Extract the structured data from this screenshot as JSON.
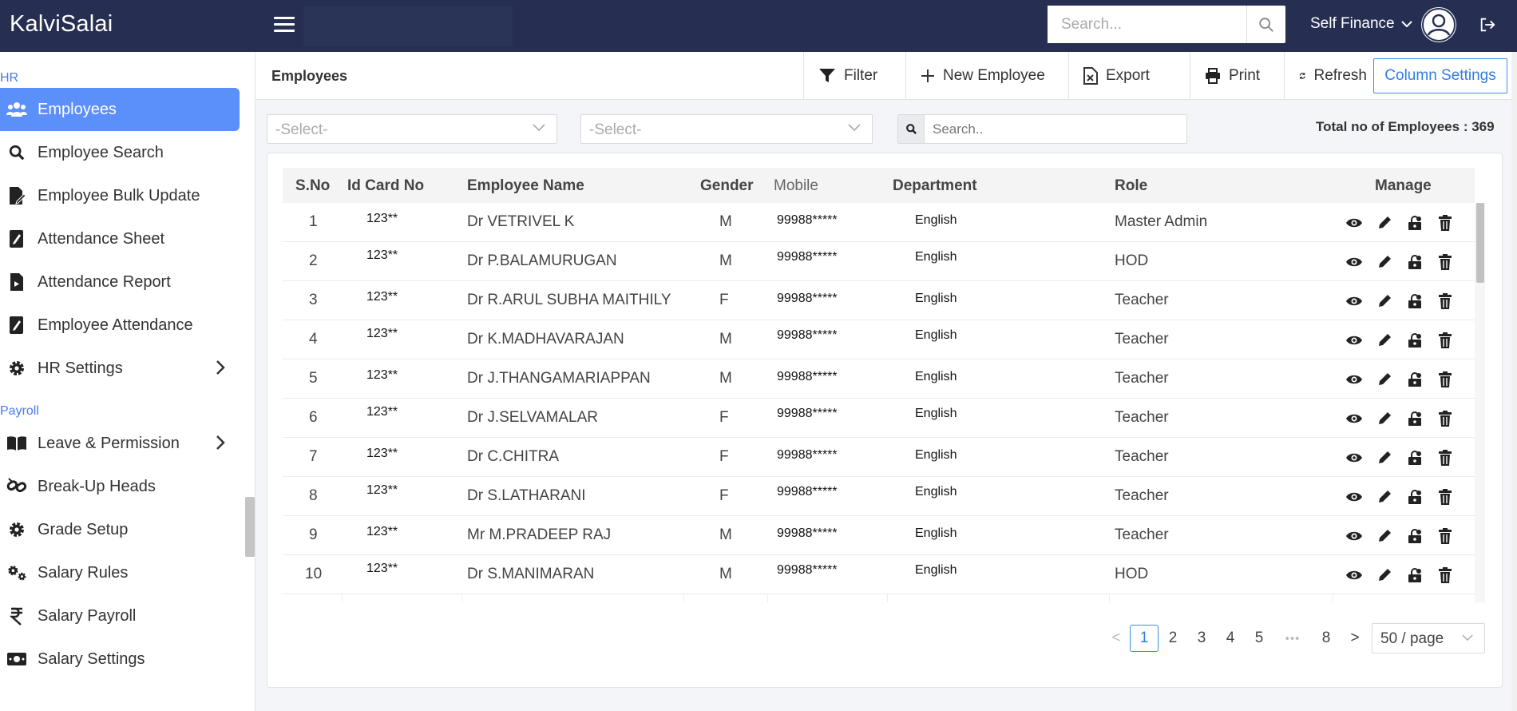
{
  "app": {
    "brand": "KalviSalai"
  },
  "topbar": {
    "search_placeholder": "Search...",
    "finance_label": "Self Finance"
  },
  "sidebar": {
    "sections": [
      "HR",
      "Payroll"
    ],
    "items": [
      {
        "label": "Employees",
        "icon": "users-icon",
        "active": true
      },
      {
        "label": "Employee Search",
        "icon": "search-icon"
      },
      {
        "label": "Employee Bulk Update",
        "icon": "file-edit-icon"
      },
      {
        "label": "Attendance Sheet",
        "icon": "book-edit-icon"
      },
      {
        "label": "Attendance Report",
        "icon": "file-report-icon"
      },
      {
        "label": "Employee Attendance",
        "icon": "book-edit-icon"
      },
      {
        "label": "HR Settings",
        "icon": "gear-icon",
        "has_children": true
      },
      {
        "label": "Leave & Permission",
        "icon": "book-open-icon",
        "has_children": true
      },
      {
        "label": "Break-Up Heads",
        "icon": "broken-link-icon"
      },
      {
        "label": "Grade Setup",
        "icon": "gear-icon"
      },
      {
        "label": "Salary Rules",
        "icon": "gears-icon"
      },
      {
        "label": "Salary Payroll",
        "icon": "rupee-icon"
      },
      {
        "label": "Salary Settings",
        "icon": "money-bill-icon"
      }
    ]
  },
  "header": {
    "title": "Employees",
    "filter_label": "Filter",
    "new_label": "New Employee",
    "export_label": "Export",
    "print_label": "Print",
    "refresh_label": "Refresh",
    "column_settings_label": "Column Settings"
  },
  "filters": {
    "select1": "-Select-",
    "select2": "-Select-",
    "search_placeholder": "Search..",
    "total_label": "Total no of Employees : 369"
  },
  "table": {
    "columns": [
      "S.No",
      "Id Card No",
      "Employee Name",
      "Gender",
      "Mobile",
      "Department",
      "Role",
      "Manage"
    ],
    "rows": [
      {
        "sno": "1",
        "id": "123**",
        "name": "Dr VETRIVEL K",
        "gender": "M",
        "mobile": "99988*****",
        "dept": "English",
        "role": "Master Admin"
      },
      {
        "sno": "2",
        "id": "123**",
        "name": "Dr P.BALAMURUGAN",
        "gender": "M",
        "mobile": "99988*****",
        "dept": "English",
        "role": "HOD"
      },
      {
        "sno": "3",
        "id": "123**",
        "name": "Dr R.ARUL SUBHA MAITHILY",
        "gender": "F",
        "mobile": "99988*****",
        "dept": "English",
        "role": "Teacher"
      },
      {
        "sno": "4",
        "id": "123**",
        "name": "Dr K.MADHAVARAJAN",
        "gender": "M",
        "mobile": "99988*****",
        "dept": "English",
        "role": "Teacher"
      },
      {
        "sno": "5",
        "id": "123**",
        "name": "Dr J.THANGAMARIAPPAN",
        "gender": "M",
        "mobile": "99988*****",
        "dept": "English",
        "role": "Teacher"
      },
      {
        "sno": "6",
        "id": "123**",
        "name": "Dr J.SELVAMALAR",
        "gender": "F",
        "mobile": "99988*****",
        "dept": "English",
        "role": "Teacher"
      },
      {
        "sno": "7",
        "id": "123**",
        "name": "Dr C.CHITRA",
        "gender": "F",
        "mobile": "99988*****",
        "dept": "English",
        "role": "Teacher"
      },
      {
        "sno": "8",
        "id": "123**",
        "name": "Dr S.LATHARANI",
        "gender": "F",
        "mobile": "99988*****",
        "dept": "English",
        "role": "Teacher"
      },
      {
        "sno": "9",
        "id": "123**",
        "name": "Mr M.PRADEEP RAJ",
        "gender": "M",
        "mobile": "99988*****",
        "dept": "English",
        "role": "Teacher"
      },
      {
        "sno": "10",
        "id": "123**",
        "name": "Dr S.MANIMARAN",
        "gender": "M",
        "mobile": "99988*****",
        "dept": "English",
        "role": "HOD"
      }
    ]
  },
  "pagination": {
    "prev": "<",
    "pages": [
      "1",
      "2",
      "3",
      "4",
      "5"
    ],
    "ellipsis": "•••",
    "last": "8",
    "next": ">",
    "current": "1",
    "per_page": "50 / page"
  },
  "colors": {
    "topbar": "#262f52",
    "accent": "#5b8ff9",
    "link": "#2f7ee6"
  }
}
